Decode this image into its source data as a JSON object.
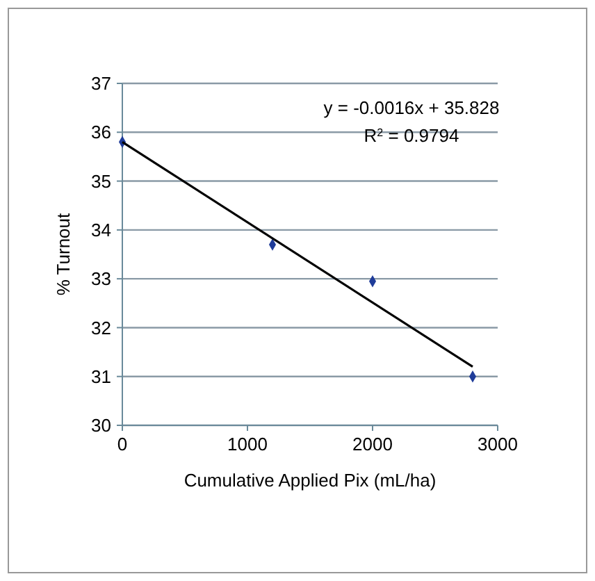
{
  "chart_data": {
    "type": "scatter",
    "xlabel": "Cumulative Applied Pix (mL/ha)",
    "ylabel": "% Turnout",
    "xlim": [
      0,
      3000
    ],
    "xticks": [
      0,
      1000,
      2000,
      3000
    ],
    "ylim": [
      30,
      37
    ],
    "yticks": [
      30,
      31,
      32,
      33,
      34,
      35,
      36,
      37
    ],
    "grid": "y",
    "annotations": [
      "y = -0.0016x + 35.828",
      "R$^{2}$ = 0.9794"
    ],
    "series": [
      {
        "marker": "diamond",
        "color": "#1f3c99",
        "x": [
          0,
          1200,
          2000,
          2800
        ],
        "values": [
          35.8,
          33.7,
          32.95,
          31.0
        ]
      },
      {
        "type": "line",
        "marker": "none",
        "color": "#000000",
        "x": [
          0,
          2800
        ],
        "values": [
          35.8,
          31.2
        ]
      }
    ]
  }
}
